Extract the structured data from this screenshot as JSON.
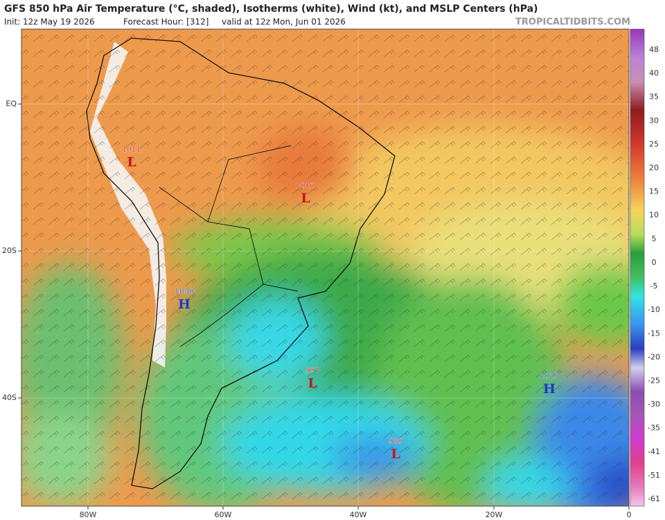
{
  "header": {
    "title": "GFS 850 hPa Air Temperature (°C, shaded), Isotherms (white), Wind (kt), and MSLP Centers (hPa)",
    "init": "Init: 12z May 19 2026",
    "forecast_hour": "Forecast Hour: [312]",
    "valid": "valid at 12z Mon, Jun 01 2026",
    "watermark": "TROPICALTIDBITS.COM"
  },
  "map": {
    "latitude_labels": [
      "EQ",
      "20S",
      "40S"
    ],
    "longitude_labels": [
      "80W",
      "60W",
      "40W",
      "20W",
      "0"
    ],
    "pressure_centers": [
      {
        "value": "1011",
        "symbol": "L"
      },
      {
        "value": "1012",
        "symbol": "L"
      },
      {
        "value": "1030",
        "symbol": "H"
      },
      {
        "value": "997",
        "symbol": "L"
      },
      {
        "value": "989",
        "symbol": "L"
      },
      {
        "value": "1025",
        "symbol": "H"
      }
    ]
  },
  "colorbar": {
    "labels": [
      "48",
      "40",
      "35",
      "30",
      "25",
      "20",
      "15",
      "10",
      "5",
      "0",
      "-5",
      "-10",
      "-15",
      "-20",
      "-25",
      "-30",
      "-35",
      "-41",
      "-51",
      "-61"
    ]
  }
}
